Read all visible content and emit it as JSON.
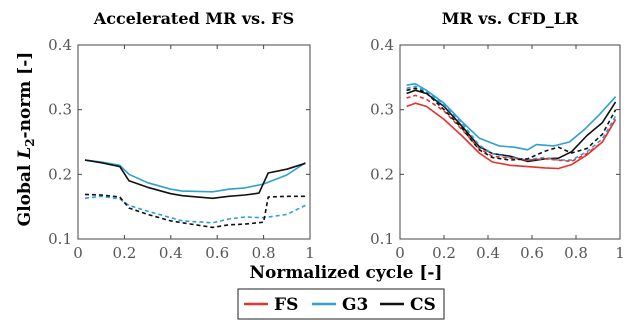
{
  "figure": {
    "xlabel": "Normalized cycle [-]",
    "ylabel_main": "Global ",
    "ylabel_var": "L",
    "ylabel_sub": "2",
    "ylabel_rest": "-norm [-]",
    "legend": [
      {
        "label": "FS",
        "color": "#e8302c"
      },
      {
        "label": "G3",
        "color": "#2f9fd6"
      },
      {
        "label": "CS",
        "color": "#111111"
      }
    ]
  },
  "chart_data": [
    {
      "type": "line",
      "title": "Accelerated MR vs. FS",
      "xlim": [
        0,
        1
      ],
      "ylim": [
        0.1,
        0.4
      ],
      "xticks": [
        "0",
        "0.2",
        "0.4",
        "0.6",
        "0.8",
        "1"
      ],
      "yticks": [
        "0.1",
        "0.2",
        "0.3",
        "0.4"
      ],
      "series": [
        {
          "name": "G3",
          "color": "#2f9fd6",
          "dash": false,
          "x": [
            0.03,
            0.1,
            0.18,
            0.22,
            0.3,
            0.4,
            0.45,
            0.58,
            0.65,
            0.72,
            0.8,
            0.9,
            0.98
          ],
          "y": [
            0.222,
            0.219,
            0.214,
            0.2,
            0.187,
            0.177,
            0.174,
            0.173,
            0.177,
            0.179,
            0.185,
            0.199,
            0.218
          ]
        },
        {
          "name": "CS",
          "color": "#111111",
          "dash": false,
          "x": [
            0.03,
            0.1,
            0.18,
            0.22,
            0.3,
            0.4,
            0.45,
            0.58,
            0.65,
            0.72,
            0.78,
            0.82,
            0.9,
            0.98
          ],
          "y": [
            0.222,
            0.218,
            0.212,
            0.19,
            0.18,
            0.17,
            0.167,
            0.163,
            0.166,
            0.168,
            0.171,
            0.202,
            0.208,
            0.217
          ]
        },
        {
          "name": "G3",
          "color": "#2f9fd6",
          "dash": true,
          "x": [
            0.03,
            0.1,
            0.18,
            0.22,
            0.3,
            0.4,
            0.45,
            0.58,
            0.65,
            0.72,
            0.8,
            0.9,
            0.98
          ],
          "y": [
            0.163,
            0.166,
            0.162,
            0.152,
            0.143,
            0.133,
            0.128,
            0.125,
            0.131,
            0.134,
            0.133,
            0.138,
            0.152
          ]
        },
        {
          "name": "CS",
          "color": "#111111",
          "dash": true,
          "x": [
            0.03,
            0.1,
            0.18,
            0.22,
            0.3,
            0.4,
            0.45,
            0.58,
            0.65,
            0.72,
            0.8,
            0.82,
            0.9,
            0.98
          ],
          "y": [
            0.169,
            0.168,
            0.165,
            0.148,
            0.138,
            0.128,
            0.125,
            0.118,
            0.122,
            0.123,
            0.126,
            0.165,
            0.166,
            0.166
          ]
        }
      ]
    },
    {
      "type": "line",
      "title": "MR vs. CFD_LR",
      "xlim": [
        0,
        1
      ],
      "ylim": [
        0.1,
        0.4
      ],
      "xticks": [
        "0",
        "0.2",
        "0.4",
        "0.6",
        "0.8",
        "1"
      ],
      "yticks": [
        "0.1",
        "0.2",
        "0.3",
        "0.4"
      ],
      "series": [
        {
          "name": "G3",
          "color": "#2f9fd6",
          "dash": false,
          "x": [
            0.03,
            0.07,
            0.12,
            0.2,
            0.28,
            0.36,
            0.45,
            0.52,
            0.58,
            0.62,
            0.7,
            0.77,
            0.84,
            0.9,
            0.98
          ],
          "y": [
            0.338,
            0.34,
            0.33,
            0.31,
            0.282,
            0.256,
            0.244,
            0.242,
            0.238,
            0.246,
            0.244,
            0.25,
            0.27,
            0.29,
            0.32
          ]
        },
        {
          "name": "FS",
          "color": "#e8302c",
          "dash": false,
          "x": [
            0.03,
            0.07,
            0.12,
            0.2,
            0.28,
            0.36,
            0.42,
            0.5,
            0.58,
            0.66,
            0.72,
            0.78,
            0.85,
            0.92,
            0.98
          ],
          "y": [
            0.305,
            0.31,
            0.305,
            0.285,
            0.26,
            0.233,
            0.219,
            0.214,
            0.212,
            0.21,
            0.209,
            0.215,
            0.23,
            0.25,
            0.285
          ]
        },
        {
          "name": "CS",
          "color": "#111111",
          "dash": false,
          "x": [
            0.03,
            0.07,
            0.12,
            0.2,
            0.28,
            0.36,
            0.42,
            0.5,
            0.58,
            0.66,
            0.72,
            0.78,
            0.85,
            0.92,
            0.98
          ],
          "y": [
            0.325,
            0.33,
            0.325,
            0.305,
            0.275,
            0.243,
            0.232,
            0.228,
            0.22,
            0.224,
            0.225,
            0.235,
            0.26,
            0.28,
            0.312
          ]
        },
        {
          "name": "G3",
          "color": "#2f9fd6",
          "dash": true,
          "x": [
            0.03,
            0.07,
            0.12,
            0.2,
            0.28,
            0.36,
            0.42,
            0.5,
            0.58,
            0.66,
            0.72,
            0.78,
            0.85,
            0.92,
            0.98
          ],
          "y": [
            0.333,
            0.336,
            0.328,
            0.307,
            0.28,
            0.245,
            0.232,
            0.226,
            0.223,
            0.226,
            0.222,
            0.222,
            0.235,
            0.255,
            0.29
          ]
        },
        {
          "name": "FS",
          "color": "#e8302c",
          "dash": true,
          "x": [
            0.03,
            0.07,
            0.12,
            0.2,
            0.28,
            0.36,
            0.42,
            0.5,
            0.58,
            0.66,
            0.72,
            0.78,
            0.85,
            0.92,
            0.98
          ],
          "y": [
            0.318,
            0.322,
            0.316,
            0.298,
            0.27,
            0.24,
            0.228,
            0.225,
            0.222,
            0.224,
            0.222,
            0.22,
            0.232,
            0.25,
            0.285
          ]
        },
        {
          "name": "CS",
          "color": "#111111",
          "dash": true,
          "x": [
            0.03,
            0.07,
            0.12,
            0.2,
            0.28,
            0.36,
            0.42,
            0.5,
            0.58,
            0.66,
            0.72,
            0.78,
            0.85,
            0.92,
            0.98
          ],
          "y": [
            0.33,
            0.333,
            0.326,
            0.3,
            0.272,
            0.238,
            0.226,
            0.222,
            0.224,
            0.236,
            0.242,
            0.233,
            0.24,
            0.262,
            0.3
          ]
        }
      ]
    }
  ]
}
